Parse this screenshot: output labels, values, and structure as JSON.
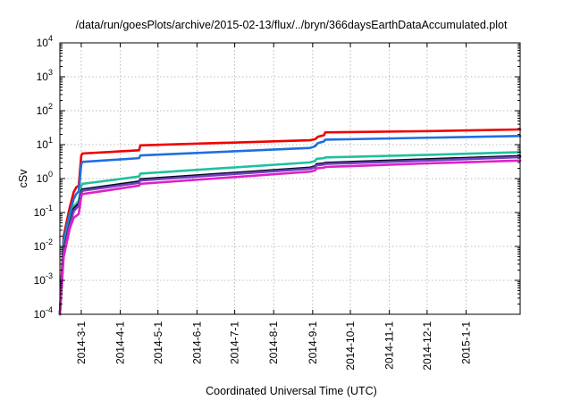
{
  "chart_data": {
    "type": "line",
    "title": "/data/run/goesPlots/archive/2015-02-13/flux/../bryn/366daysEarthDataAccumulated.plot",
    "xlabel": "Coordinated Universal Time (UTC)",
    "ylabel": "cSv",
    "x_scale": "time",
    "y_scale": "log",
    "xlim": [
      "2014-02-12",
      "2015-02-13"
    ],
    "ylim": [
      0.0001,
      10000
    ],
    "grid": true,
    "legend": "none",
    "x_ticks": [
      "2014-3-1",
      "2014-4-1",
      "2014-5-1",
      "2014-6-1",
      "2014-7-1",
      "2014-8-1",
      "2014-9-1",
      "2014-10-1",
      "2014-11-1",
      "2014-12-1",
      "2015-1-1"
    ],
    "y_ticks": [
      {
        "base": "10",
        "exp": "-4"
      },
      {
        "base": "10",
        "exp": "-3"
      },
      {
        "base": "10",
        "exp": "-2"
      },
      {
        "base": "10",
        "exp": "-1"
      },
      {
        "base": "10",
        "exp": "0"
      },
      {
        "base": "10",
        "exp": "1"
      },
      {
        "base": "10",
        "exp": "2"
      },
      {
        "base": "10",
        "exp": "3"
      },
      {
        "base": "10",
        "exp": "4"
      }
    ],
    "series": [
      {
        "color": "#ee0000",
        "x": [
          "2014-02-12",
          "2014-02-15",
          "2014-02-20",
          "2014-02-23",
          "2014-02-25",
          "2014-02-27",
          "2014-03-01",
          "2014-03-02",
          "2014-04-16",
          "2014-04-17",
          "2014-08-30",
          "2014-09-03",
          "2014-09-04",
          "2014-09-05",
          "2014-09-10",
          "2014-09-11",
          "2014-12-01",
          "2015-02-13"
        ],
        "y": [
          0.0001,
          0.02,
          0.15,
          0.4,
          0.55,
          0.62,
          4.8,
          5.5,
          6.8,
          9.5,
          13.5,
          14.5,
          15.5,
          17,
          19,
          23,
          25,
          28
        ]
      },
      {
        "color": "#1f6fe0",
        "x": [
          "2014-02-12",
          "2014-02-15",
          "2014-02-20",
          "2014-02-23",
          "2014-02-25",
          "2014-02-27",
          "2014-03-01",
          "2014-03-02",
          "2014-04-16",
          "2014-04-17",
          "2014-08-30",
          "2014-09-03",
          "2014-09-04",
          "2014-09-05",
          "2014-09-10",
          "2014-09-11",
          "2014-12-01",
          "2015-02-13"
        ],
        "y": [
          0.0001,
          0.015,
          0.1,
          0.25,
          0.35,
          0.42,
          2.7,
          3.1,
          4,
          4.8,
          8,
          9,
          10,
          11,
          12.5,
          14,
          16,
          18
        ]
      },
      {
        "color": "#20c0a0",
        "x": [
          "2014-02-12",
          "2014-02-15",
          "2014-02-20",
          "2014-02-23",
          "2014-02-27",
          "2014-03-01",
          "2014-03-02",
          "2014-04-16",
          "2014-04-17",
          "2014-08-30",
          "2014-09-03",
          "2014-09-04",
          "2014-09-10",
          "2014-09-11",
          "2014-12-01",
          "2015-02-13"
        ],
        "y": [
          0.0001,
          0.01,
          0.06,
          0.15,
          0.22,
          0.6,
          0.7,
          1.15,
          1.4,
          3,
          3.3,
          3.8,
          4,
          4.2,
          5,
          6
        ]
      },
      {
        "color": "#0a0a1e",
        "x": [
          "2014-02-12",
          "2014-02-15",
          "2014-02-20",
          "2014-02-23",
          "2014-02-27",
          "2014-03-01",
          "2014-03-02",
          "2014-04-16",
          "2014-04-17",
          "2014-08-30",
          "2014-09-03",
          "2014-09-04",
          "2014-09-10",
          "2014-09-11",
          "2014-12-01",
          "2015-02-13"
        ],
        "y": [
          0.0001,
          0.008,
          0.05,
          0.13,
          0.18,
          0.42,
          0.48,
          0.82,
          0.95,
          2.1,
          2.3,
          2.65,
          2.8,
          2.9,
          3.7,
          4.6
        ]
      },
      {
        "color": "#7040c0",
        "x": [
          "2014-02-12",
          "2014-02-15",
          "2014-02-20",
          "2014-02-23",
          "2014-02-27",
          "2014-03-01",
          "2014-03-02",
          "2014-04-16",
          "2014-04-17",
          "2014-08-30",
          "2014-09-03",
          "2014-09-04",
          "2014-09-10",
          "2014-09-11",
          "2014-12-01",
          "2015-02-13"
        ],
        "y": [
          0.0001,
          0.007,
          0.045,
          0.11,
          0.16,
          0.38,
          0.44,
          0.75,
          0.88,
          1.95,
          2.15,
          2.45,
          2.6,
          2.7,
          3.4,
          4.3
        ]
      },
      {
        "color": "#e020c8",
        "x": [
          "2014-02-12",
          "2014-02-15",
          "2014-02-20",
          "2014-02-23",
          "2014-02-27",
          "2014-03-01",
          "2014-03-02",
          "2014-04-16",
          "2014-04-17",
          "2014-08-30",
          "2014-09-03",
          "2014-09-04",
          "2014-09-10",
          "2014-09-11",
          "2014-12-01",
          "2015-02-13"
        ],
        "y": [
          0.0001,
          0.005,
          0.035,
          0.07,
          0.09,
          0.3,
          0.35,
          0.62,
          0.7,
          1.6,
          1.75,
          2,
          2.1,
          2.2,
          2.8,
          3.4
        ]
      }
    ]
  }
}
